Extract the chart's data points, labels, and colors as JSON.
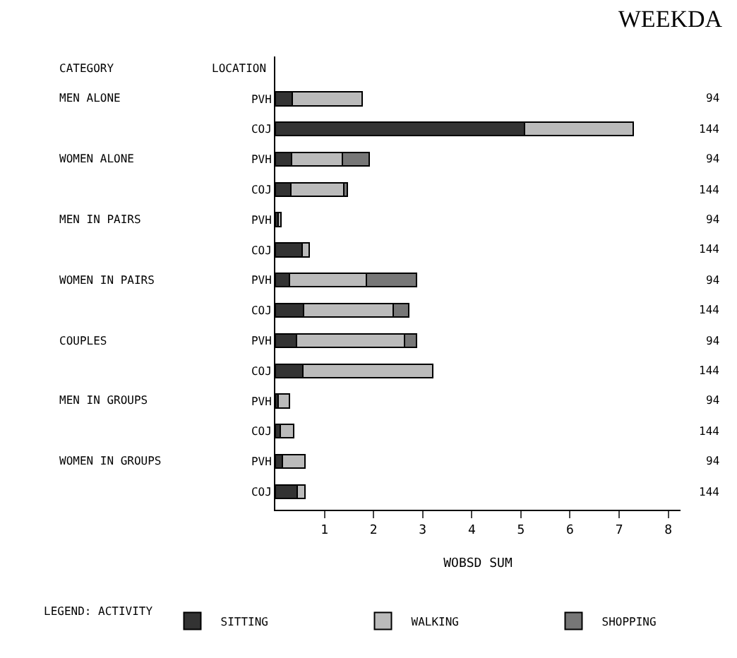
{
  "chart_data": {
    "type": "bar",
    "orientation": "horizontal",
    "stacked": true,
    "title": "WEEKDA",
    "xlabel": "WOBSD SUM",
    "ylabel": "LOCATION",
    "legend_title": "LEGEND: ACTIVITY",
    "legend": "bottom",
    "categories": [
      "PVH",
      "COJ",
      "PVH",
      "COJ",
      "PVH",
      "COJ",
      "PVH",
      "COJ",
      "PVH",
      "COJ",
      "PVH",
      "COJ",
      "PVH",
      "COJ"
    ],
    "series": [
      {
        "name": "SITTING",
        "color": "#333333",
        "values": [
          0.35,
          5.08,
          0.33,
          0.31,
          0.06,
          0.54,
          0.29,
          0.58,
          0.43,
          0.56,
          0.06,
          0.1,
          0.15,
          0.45
        ]
      },
      {
        "name": "WALKING",
        "color": "#bbbbbb",
        "values": [
          1.42,
          2.2,
          1.04,
          1.09,
          0.06,
          0.15,
          1.57,
          1.82,
          2.2,
          2.64,
          0.23,
          0.28,
          0.46,
          0.16
        ]
      },
      {
        "name": "SHOPPING",
        "color": "#777777",
        "values": [
          null,
          null,
          0.54,
          0.07,
          null,
          null,
          1.02,
          0.31,
          0.25,
          null,
          null,
          null,
          null,
          null
        ]
      }
    ],
    "xlim": [
      0,
      8.25
    ],
    "xticks": [
      1,
      2,
      3,
      4,
      5,
      6,
      7,
      8
    ],
    "annotations": [
      "CATEGORY",
      "MEN ALONE",
      "WOMEN ALONE",
      "MEN IN PAIRS",
      "WOMEN IN PAIRS",
      "COUPLES",
      "MEN IN GROUPS",
      "WOMEN IN GROUPS",
      "94",
      "144",
      "94",
      "144",
      "94",
      "144",
      "94",
      "144",
      "94",
      "144",
      "94",
      "144",
      "94",
      "144"
    ]
  }
}
